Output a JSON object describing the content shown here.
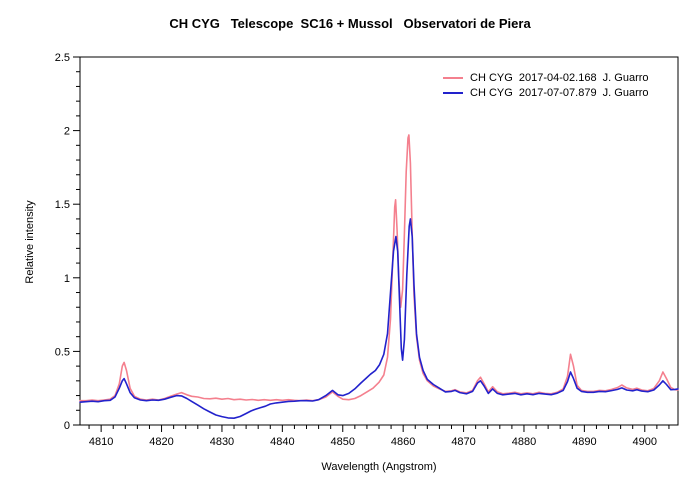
{
  "title": "CH CYG   Telescope  SC16 + Mussol   Observatori de Piera",
  "chart_data": {
    "type": "line",
    "title": "CH CYG   Telescope  SC16 + Mussol   Observatori de Piera",
    "xlabel": "Wavelength (Angstrom)",
    "ylabel": "Relative intensity",
    "grid": false,
    "legend_position": "top-right",
    "x_axis": {
      "min": 4806.5,
      "max": 4905.5,
      "minor_step": 2,
      "major_ticks": [
        4810,
        4820,
        4830,
        4840,
        4850,
        4860,
        4870,
        4880,
        4890,
        4900
      ]
    },
    "y_axis": {
      "min": 0,
      "max": 2.5,
      "minor_step": 0.1,
      "major_ticks": [
        {
          "v": 0,
          "label": "0"
        },
        {
          "v": 0.5,
          "label": "0.5"
        },
        {
          "v": 1,
          "label": "1"
        },
        {
          "v": 1.5,
          "label": "1.5"
        },
        {
          "v": 2,
          "label": "2"
        },
        {
          "v": 2.5,
          "label": "2.5"
        }
      ]
    },
    "legend": {
      "entries": [
        {
          "label": "CH CYG  2017-04-02.168  J. Guarro",
          "color": "#f4808e"
        },
        {
          "label": "CH CYG  2017-07-07.879  J. Guarro",
          "color": "#2222cc"
        }
      ]
    },
    "series": [
      {
        "name": "CH CYG 2017-04-02.168 J. Guarro",
        "color": "#f4808e",
        "points": [
          [
            4806.5,
            0.165
          ],
          [
            4807.5,
            0.165
          ],
          [
            4808.5,
            0.17
          ],
          [
            4809.5,
            0.165
          ],
          [
            4810.5,
            0.17
          ],
          [
            4811.5,
            0.175
          ],
          [
            4812.3,
            0.2
          ],
          [
            4813.0,
            0.28
          ],
          [
            4813.5,
            0.4
          ],
          [
            4813.8,
            0.425
          ],
          [
            4814.2,
            0.37
          ],
          [
            4814.8,
            0.25
          ],
          [
            4815.5,
            0.195
          ],
          [
            4816.5,
            0.175
          ],
          [
            4817.5,
            0.17
          ],
          [
            4818.5,
            0.175
          ],
          [
            4819.5,
            0.17
          ],
          [
            4820.5,
            0.18
          ],
          [
            4821.5,
            0.195
          ],
          [
            4822.5,
            0.21
          ],
          [
            4823.3,
            0.22
          ],
          [
            4824.2,
            0.205
          ],
          [
            4825,
            0.195
          ],
          [
            4826,
            0.19
          ],
          [
            4827,
            0.18
          ],
          [
            4828,
            0.178
          ],
          [
            4829,
            0.182
          ],
          [
            4830,
            0.175
          ],
          [
            4831,
            0.18
          ],
          [
            4832,
            0.172
          ],
          [
            4833,
            0.175
          ],
          [
            4834,
            0.17
          ],
          [
            4835,
            0.173
          ],
          [
            4836,
            0.168
          ],
          [
            4837,
            0.172
          ],
          [
            4838,
            0.168
          ],
          [
            4839,
            0.172
          ],
          [
            4840,
            0.168
          ],
          [
            4841,
            0.172
          ],
          [
            4842,
            0.168
          ],
          [
            4843,
            0.165
          ],
          [
            4844,
            0.17
          ],
          [
            4845,
            0.165
          ],
          [
            4846,
            0.172
          ],
          [
            4847.2,
            0.19
          ],
          [
            4848.3,
            0.225
          ],
          [
            4849.2,
            0.195
          ],
          [
            4850,
            0.175
          ],
          [
            4851,
            0.172
          ],
          [
            4852,
            0.18
          ],
          [
            4853,
            0.2
          ],
          [
            4854,
            0.225
          ],
          [
            4855,
            0.25
          ],
          [
            4856,
            0.29
          ],
          [
            4856.8,
            0.34
          ],
          [
            4857.4,
            0.46
          ],
          [
            4857.9,
            0.72
          ],
          [
            4858.3,
            1.15
          ],
          [
            4858.6,
            1.48
          ],
          [
            4858.75,
            1.53
          ],
          [
            4859.0,
            1.32
          ],
          [
            4859.3,
            0.98
          ],
          [
            4859.6,
            0.8
          ],
          [
            4859.9,
            0.92
          ],
          [
            4860.2,
            1.3
          ],
          [
            4860.5,
            1.72
          ],
          [
            4860.8,
            1.95
          ],
          [
            4860.95,
            1.97
          ],
          [
            4861.2,
            1.78
          ],
          [
            4861.5,
            1.3
          ],
          [
            4861.8,
            0.88
          ],
          [
            4862.2,
            0.6
          ],
          [
            4862.7,
            0.44
          ],
          [
            4863.3,
            0.35
          ],
          [
            4864,
            0.3
          ],
          [
            4865,
            0.265
          ],
          [
            4866,
            0.245
          ],
          [
            4867,
            0.228
          ],
          [
            4868,
            0.232
          ],
          [
            4868.6,
            0.24
          ],
          [
            4869.4,
            0.225
          ],
          [
            4870.5,
            0.218
          ],
          [
            4871.5,
            0.235
          ],
          [
            4872.3,
            0.3
          ],
          [
            4872.8,
            0.325
          ],
          [
            4873.4,
            0.28
          ],
          [
            4874.1,
            0.225
          ],
          [
            4874.8,
            0.26
          ],
          [
            4875.6,
            0.225
          ],
          [
            4876.5,
            0.212
          ],
          [
            4877.5,
            0.216
          ],
          [
            4878.5,
            0.222
          ],
          [
            4879.5,
            0.212
          ],
          [
            4880.5,
            0.218
          ],
          [
            4881.5,
            0.212
          ],
          [
            4882.5,
            0.222
          ],
          [
            4883.5,
            0.215
          ],
          [
            4884.5,
            0.212
          ],
          [
            4885.5,
            0.222
          ],
          [
            4886.5,
            0.245
          ],
          [
            4887.2,
            0.33
          ],
          [
            4887.7,
            0.48
          ],
          [
            4888.2,
            0.4
          ],
          [
            4888.8,
            0.27
          ],
          [
            4889.5,
            0.235
          ],
          [
            4890.5,
            0.228
          ],
          [
            4891.5,
            0.228
          ],
          [
            4892.5,
            0.235
          ],
          [
            4893.5,
            0.232
          ],
          [
            4894.5,
            0.242
          ],
          [
            4895.5,
            0.255
          ],
          [
            4896.2,
            0.272
          ],
          [
            4897,
            0.252
          ],
          [
            4898,
            0.242
          ],
          [
            4898.7,
            0.25
          ],
          [
            4899.5,
            0.238
          ],
          [
            4900.5,
            0.232
          ],
          [
            4901.5,
            0.248
          ],
          [
            4902.4,
            0.3
          ],
          [
            4903.0,
            0.36
          ],
          [
            4903.6,
            0.315
          ],
          [
            4904.3,
            0.255
          ],
          [
            4905,
            0.24
          ],
          [
            4905.5,
            0.238
          ]
        ]
      },
      {
        "name": "CH CYG 2017-07-07.879 J. Guarro",
        "color": "#2222cc",
        "points": [
          [
            4806.5,
            0.155
          ],
          [
            4807.5,
            0.158
          ],
          [
            4808.5,
            0.162
          ],
          [
            4809.5,
            0.158
          ],
          [
            4810.5,
            0.165
          ],
          [
            4811.5,
            0.168
          ],
          [
            4812.3,
            0.19
          ],
          [
            4813.0,
            0.25
          ],
          [
            4813.5,
            0.3
          ],
          [
            4813.8,
            0.315
          ],
          [
            4814.2,
            0.28
          ],
          [
            4814.8,
            0.22
          ],
          [
            4815.5,
            0.185
          ],
          [
            4816.5,
            0.17
          ],
          [
            4817.5,
            0.165
          ],
          [
            4818.5,
            0.17
          ],
          [
            4819.5,
            0.168
          ],
          [
            4820.5,
            0.175
          ],
          [
            4821.5,
            0.188
          ],
          [
            4822.5,
            0.2
          ],
          [
            4823.3,
            0.198
          ],
          [
            4824.2,
            0.18
          ],
          [
            4825,
            0.16
          ],
          [
            4826,
            0.135
          ],
          [
            4827,
            0.11
          ],
          [
            4828,
            0.088
          ],
          [
            4829,
            0.068
          ],
          [
            4830,
            0.057
          ],
          [
            4831,
            0.048
          ],
          [
            4832,
            0.046
          ],
          [
            4833,
            0.058
          ],
          [
            4834,
            0.078
          ],
          [
            4834.8,
            0.095
          ],
          [
            4835.6,
            0.108
          ],
          [
            4836.4,
            0.118
          ],
          [
            4837.2,
            0.128
          ],
          [
            4838,
            0.143
          ],
          [
            4839,
            0.15
          ],
          [
            4840,
            0.155
          ],
          [
            4841,
            0.16
          ],
          [
            4842,
            0.162
          ],
          [
            4843,
            0.165
          ],
          [
            4844,
            0.165
          ],
          [
            4845,
            0.163
          ],
          [
            4846,
            0.172
          ],
          [
            4847.2,
            0.2
          ],
          [
            4848.3,
            0.235
          ],
          [
            4849.2,
            0.205
          ],
          [
            4850,
            0.2
          ],
          [
            4851,
            0.215
          ],
          [
            4852,
            0.245
          ],
          [
            4853,
            0.285
          ],
          [
            4853.8,
            0.315
          ],
          [
            4854.6,
            0.345
          ],
          [
            4855.4,
            0.37
          ],
          [
            4856.1,
            0.41
          ],
          [
            4856.8,
            0.48
          ],
          [
            4857.4,
            0.62
          ],
          [
            4857.9,
            0.9
          ],
          [
            4858.4,
            1.18
          ],
          [
            4858.8,
            1.28
          ],
          [
            4859.1,
            1.18
          ],
          [
            4859.4,
            0.85
          ],
          [
            4859.7,
            0.52
          ],
          [
            4859.9,
            0.44
          ],
          [
            4860.2,
            0.58
          ],
          [
            4860.6,
            1.02
          ],
          [
            4861.0,
            1.35
          ],
          [
            4861.2,
            1.4
          ],
          [
            4861.5,
            1.28
          ],
          [
            4861.8,
            0.95
          ],
          [
            4862.2,
            0.62
          ],
          [
            4862.7,
            0.46
          ],
          [
            4863.3,
            0.37
          ],
          [
            4864,
            0.31
          ],
          [
            4865,
            0.275
          ],
          [
            4866,
            0.25
          ],
          [
            4867,
            0.225
          ],
          [
            4868,
            0.228
          ],
          [
            4868.6,
            0.235
          ],
          [
            4869.4,
            0.22
          ],
          [
            4870.5,
            0.212
          ],
          [
            4871.5,
            0.228
          ],
          [
            4872.3,
            0.285
          ],
          [
            4872.8,
            0.3
          ],
          [
            4873.4,
            0.265
          ],
          [
            4874.1,
            0.215
          ],
          [
            4874.8,
            0.245
          ],
          [
            4875.6,
            0.215
          ],
          [
            4876.5,
            0.205
          ],
          [
            4877.5,
            0.21
          ],
          [
            4878.5,
            0.215
          ],
          [
            4879.5,
            0.205
          ],
          [
            4880.5,
            0.212
          ],
          [
            4881.5,
            0.206
          ],
          [
            4882.5,
            0.215
          ],
          [
            4883.5,
            0.21
          ],
          [
            4884.5,
            0.206
          ],
          [
            4885.5,
            0.216
          ],
          [
            4886.5,
            0.235
          ],
          [
            4887.2,
            0.295
          ],
          [
            4887.7,
            0.36
          ],
          [
            4888.2,
            0.315
          ],
          [
            4888.8,
            0.25
          ],
          [
            4889.5,
            0.228
          ],
          [
            4890.5,
            0.222
          ],
          [
            4891.5,
            0.222
          ],
          [
            4892.5,
            0.228
          ],
          [
            4893.5,
            0.226
          ],
          [
            4894.5,
            0.234
          ],
          [
            4895.5,
            0.242
          ],
          [
            4896.2,
            0.252
          ],
          [
            4897,
            0.238
          ],
          [
            4898,
            0.232
          ],
          [
            4898.7,
            0.24
          ],
          [
            4899.5,
            0.23
          ],
          [
            4900.5,
            0.226
          ],
          [
            4901.5,
            0.238
          ],
          [
            4902.4,
            0.272
          ],
          [
            4903.0,
            0.3
          ],
          [
            4903.6,
            0.275
          ],
          [
            4904.3,
            0.24
          ],
          [
            4905,
            0.242
          ],
          [
            4905.5,
            0.245
          ]
        ]
      }
    ]
  }
}
